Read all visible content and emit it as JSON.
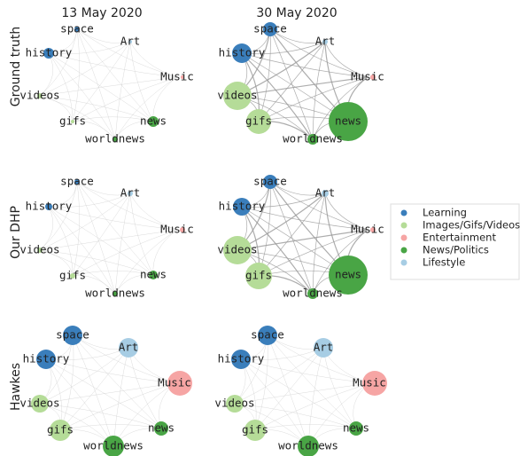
{
  "columns": [
    "13 May 2020",
    "30 May 2020"
  ],
  "rows": [
    "Ground truth",
    "Our DHP",
    "Hawkes"
  ],
  "groups": [
    {
      "name": "Learning",
      "color": "#3a7ebb",
      "nodes": [
        "history",
        "space"
      ]
    },
    {
      "name": "Images/Gifs/Videos",
      "color": "#b5dc98",
      "nodes": [
        "videos",
        "gifs"
      ]
    },
    {
      "name": "Entertainment",
      "color": "#f6a5a4",
      "nodes": [
        "Music"
      ]
    },
    {
      "name": "News/Politics",
      "color": "#49a545",
      "nodes": [
        "news",
        "worldnews"
      ]
    },
    {
      "name": "Lifestyle",
      "color": "#a7cde4",
      "nodes": [
        "Art"
      ]
    }
  ]
}
